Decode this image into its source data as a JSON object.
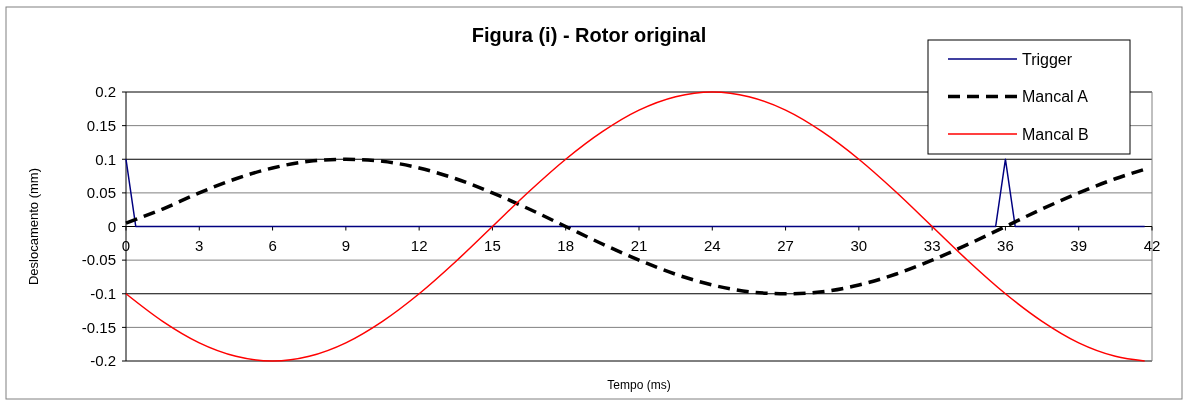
{
  "chart_data": {
    "type": "line",
    "title": "Figura (i) - Rotor original",
    "xlabel": "Tempo (ms)",
    "ylabel": "Deslocamento (mm)",
    "xlim": [
      0,
      42
    ],
    "xticks": [
      0,
      3,
      6,
      9,
      12,
      15,
      18,
      21,
      24,
      27,
      30,
      33,
      36,
      39,
      42
    ],
    "ylim": [
      -0.2,
      0.2
    ],
    "yticks": [
      -0.2,
      -0.15,
      -0.1,
      -0.05,
      0,
      0.05,
      0.1,
      0.15,
      0.2
    ],
    "grid": "y",
    "legend": "top right",
    "series": [
      {
        "name": "Trigger",
        "color": "#000080",
        "line_style": "solid",
        "x": [
          0,
          0.4,
          35.6,
          36,
          36.4,
          41.7
        ],
        "values": [
          0.1,
          0,
          0,
          0.1,
          0,
          0
        ]
      },
      {
        "name": "Mancal A",
        "color": "#000000",
        "line_style": "dashed",
        "x": [
          0,
          1.5,
          3,
          4.5,
          6,
          7.5,
          9,
          10.5,
          12,
          13.5,
          15,
          16.5,
          18,
          19.5,
          21,
          22.5,
          24,
          25.5,
          27,
          28.5,
          30,
          31.5,
          33,
          34.5,
          36,
          37.5,
          39,
          40.5,
          41.7
        ],
        "values": [
          0.005,
          0.026,
          0.05,
          0.071,
          0.087,
          0.097,
          0.1,
          0.097,
          0.087,
          0.071,
          0.05,
          0.026,
          0,
          -0.026,
          -0.05,
          -0.071,
          -0.087,
          -0.097,
          -0.1,
          -0.097,
          -0.087,
          -0.071,
          -0.05,
          -0.026,
          0,
          0.026,
          0.05,
          0.071,
          0.085
        ]
      },
      {
        "name": "Mancal B",
        "color": "#ff0000",
        "line_style": "solid",
        "x": [
          0,
          1.5,
          3,
          4.5,
          6,
          7.5,
          9,
          10.5,
          12,
          13.5,
          15,
          16.5,
          18,
          19.5,
          21,
          22.5,
          24,
          25.5,
          27,
          28.5,
          30,
          31.5,
          33,
          34.5,
          36,
          37.5,
          39,
          40.5,
          41.7
        ],
        "values": [
          -0.1,
          -0.141,
          -0.173,
          -0.193,
          -0.2,
          -0.193,
          -0.173,
          -0.141,
          -0.1,
          -0.052,
          0,
          0.052,
          0.1,
          0.141,
          0.173,
          0.193,
          0.2,
          0.193,
          0.173,
          0.141,
          0.1,
          0.052,
          0,
          -0.052,
          -0.1,
          -0.141,
          -0.173,
          -0.193,
          -0.2
        ]
      }
    ]
  }
}
